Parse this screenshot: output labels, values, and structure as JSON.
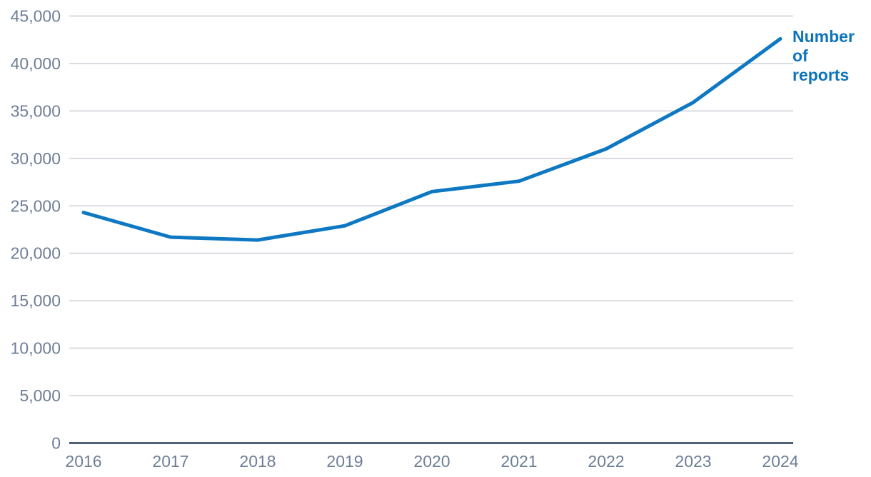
{
  "colors": {
    "background": "#ffffff",
    "line": "#0e78c2",
    "series_label": "#0c74bd",
    "grid": "#d9dce1",
    "axis_zero_line": "#4e5f78",
    "tick_text": "#6e7e96"
  },
  "series_label": {
    "lines": [
      "Number",
      "of",
      "reports"
    ]
  },
  "chart_data": {
    "type": "line",
    "title": "",
    "xlabel": "",
    "ylabel": "Number of reports",
    "x": [
      2016,
      2017,
      2018,
      2019,
      2020,
      2021,
      2022,
      2023,
      2024
    ],
    "x_tick_labels": [
      "2016",
      "2017",
      "2018",
      "2019",
      "2020",
      "2021",
      "2022",
      "2023",
      "2024"
    ],
    "series": [
      {
        "name": "Number of reports",
        "values": [
          24300,
          21700,
          21400,
          22900,
          26500,
          27600,
          31000,
          35900,
          42600
        ]
      }
    ],
    "ylim": [
      0,
      45000
    ],
    "grid": true,
    "legend_position": "right-of-line-end",
    "y_ticks": [
      {
        "value": 0,
        "label": "0"
      },
      {
        "value": 5000,
        "label": "5,000"
      },
      {
        "value": 10000,
        "label": "10,000"
      },
      {
        "value": 15000,
        "label": "15,000"
      },
      {
        "value": 20000,
        "label": "20,000"
      },
      {
        "value": 25000,
        "label": "25,000"
      },
      {
        "value": 30000,
        "label": "30,000"
      },
      {
        "value": 35000,
        "label": "35,000"
      },
      {
        "value": 40000,
        "label": "40,000"
      },
      {
        "value": 45000,
        "label": "45,000"
      }
    ]
  }
}
